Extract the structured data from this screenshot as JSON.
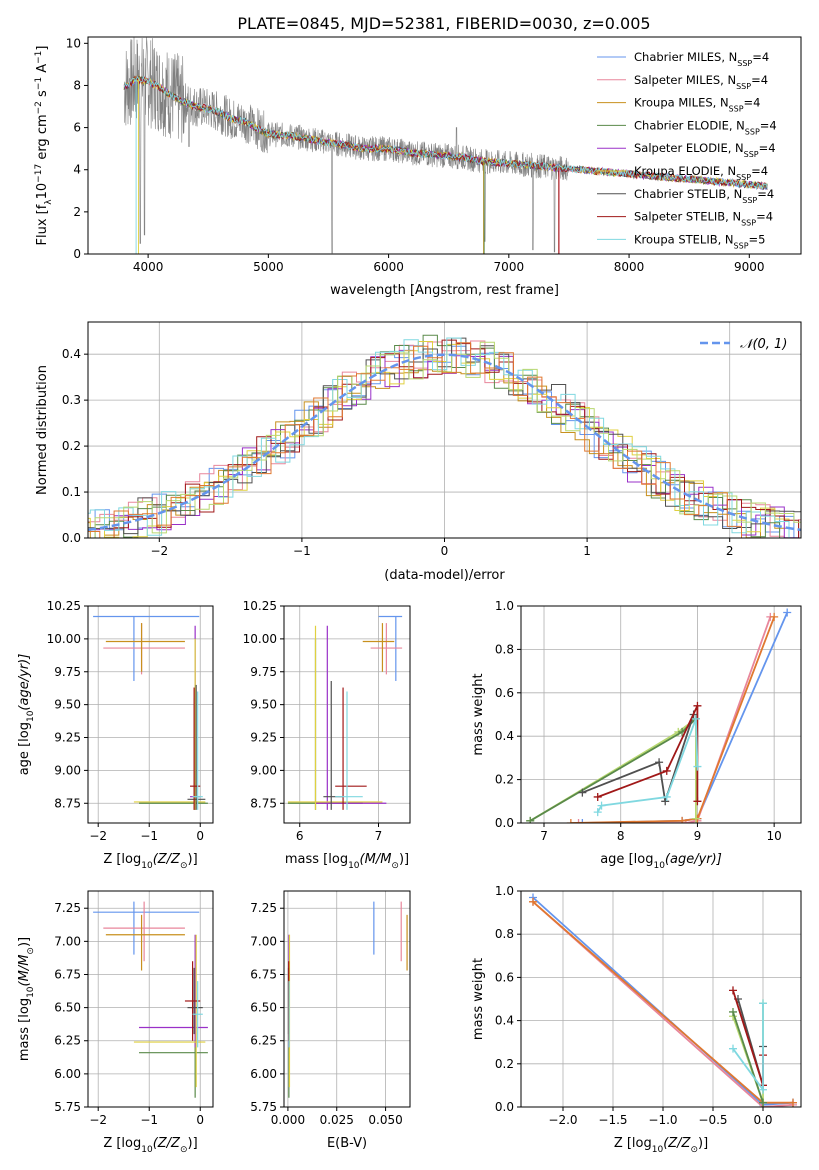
{
  "title": "PLATE=0845, MJD=52381, FIBERID=0030, z=0.005",
  "colors": {
    "chab_miles": "#6495ED",
    "salp_miles": "#E8869B",
    "krou_miles": "#C8901E",
    "chab_elodie": "#5A8A4A",
    "salp_elodie": "#9A30C8",
    "krou_elodie": "#E0D040",
    "chab_stelib": "#505050",
    "salp_stelib": "#A01818",
    "krou_stelib": "#80D8E0",
    "data": "#808080",
    "normal": "#6495ED",
    "orange": "#E07830",
    "lime": "#B8D870"
  },
  "models": [
    {
      "key": "chab_miles",
      "label": "Chabrier MILES, N",
      "nssp": "=4"
    },
    {
      "key": "salp_miles",
      "label": "Salpeter MILES, N",
      "nssp": "=4"
    },
    {
      "key": "krou_miles",
      "label": "Kroupa MILES, N",
      "nssp": "=4"
    },
    {
      "key": "chab_elodie",
      "label": "Chabrier ELODIE, N",
      "nssp": "=4"
    },
    {
      "key": "salp_elodie",
      "label": "Salpeter ELODIE, N",
      "nssp": "=4"
    },
    {
      "key": "krou_elodie",
      "label": "Kroupa ELODIE, N",
      "nssp": "=4"
    },
    {
      "key": "chab_stelib",
      "label": "Chabrier STELIB, N",
      "nssp": "=4"
    },
    {
      "key": "salp_stelib",
      "label": "Salpeter STELIB, N",
      "nssp": "=4"
    },
    {
      "key": "krou_stelib",
      "label": "Kroupa STELIB, N",
      "nssp": "=5"
    }
  ],
  "nssp_sub": "SSP",
  "chart_data": [
    {
      "id": "spectrum",
      "type": "line",
      "title": "PLATE=0845, MJD=52381, FIBERID=0030, z=0.005",
      "xlabel": "wavelength [Angstrom, rest frame]",
      "ylabel_parts": [
        "Flux [f",
        "λ",
        "10",
        "−17",
        " erg cm",
        "−2",
        " s",
        "−1",
        " A",
        "−1",
        "]"
      ],
      "xlim": [
        3500,
        9430
      ],
      "ylim": [
        0,
        10.3
      ],
      "xticks": [
        4000,
        5000,
        6000,
        7000,
        8000,
        9000
      ],
      "yticks": [
        0,
        2,
        4,
        6,
        8,
        10
      ],
      "continuum": [
        [
          3800,
          7.9
        ],
        [
          3900,
          8.3
        ],
        [
          4000,
          8.2
        ],
        [
          4100,
          7.9
        ],
        [
          4200,
          7.5
        ],
        [
          4300,
          7.2
        ],
        [
          4400,
          7.0
        ],
        [
          4500,
          6.9
        ],
        [
          4600,
          6.7
        ],
        [
          4700,
          6.4
        ],
        [
          4800,
          6.3
        ],
        [
          4900,
          6.0
        ],
        [
          5000,
          5.7
        ],
        [
          5200,
          5.6
        ],
        [
          5400,
          5.4
        ],
        [
          5600,
          5.2
        ],
        [
          5800,
          5.0
        ],
        [
          6000,
          5.0
        ],
        [
          6200,
          4.8
        ],
        [
          6400,
          4.7
        ],
        [
          6600,
          4.6
        ],
        [
          6800,
          4.4
        ],
        [
          7000,
          4.3
        ],
        [
          7200,
          4.2
        ],
        [
          7400,
          4.1
        ],
        [
          7600,
          4.0
        ],
        [
          7800,
          3.9
        ],
        [
          8000,
          3.8
        ],
        [
          8200,
          3.7
        ],
        [
          8400,
          3.6
        ],
        [
          8600,
          3.5
        ],
        [
          8800,
          3.4
        ],
        [
          9000,
          3.3
        ],
        [
          9150,
          3.2
        ]
      ],
      "data_range": [
        3800,
        9150
      ],
      "dips": [
        [
          3935,
          0.5
        ],
        [
          3970,
          0.9
        ],
        [
          4340,
          5.1
        ],
        [
          4860,
          5.6
        ],
        [
          5530,
          0.05
        ],
        [
          6565,
          6.0
        ],
        [
          6800,
          0.6
        ],
        [
          7200,
          0.2
        ],
        [
          7380,
          0.1
        ]
      ]
    },
    {
      "id": "residuals",
      "type": "histogram",
      "xlabel": "(data-model)/error",
      "ylabel": "Normed distribution",
      "xlim": [
        -2.5,
        2.5
      ],
      "ylim": [
        0,
        0.47
      ],
      "xticks": [
        -2,
        -1,
        0,
        1,
        2
      ],
      "yticks": [
        0.0,
        0.1,
        0.2,
        0.3,
        0.4
      ],
      "legend": "𝒩(0, 1)",
      "bin_width": 0.1
    },
    {
      "id": "age_vs_Z",
      "type": "scatter",
      "xlabel_parts": [
        "Z [log",
        "10",
        "(Z/Z",
        "⊙",
        ")]"
      ],
      "ylabel_parts": [
        "age  [log",
        "10",
        "(age/yr)]"
      ],
      "xlim": [
        -2.2,
        0.25
      ],
      "ylim": [
        8.6,
        10.25
      ],
      "xticks": [
        -2,
        -1,
        0
      ],
      "yticks": [
        8.75,
        9.0,
        9.25,
        9.5,
        9.75,
        10.0,
        10.25
      ],
      "points": [
        {
          "c": "chab_miles",
          "x": -1.3,
          "y": 10.17,
          "xl": -2.1,
          "xh": -0.02,
          "yl": 9.68,
          "yh": 10.17
        },
        {
          "c": "salp_miles",
          "x": -1.15,
          "y": 9.93,
          "xl": -1.9,
          "xh": -0.3,
          "yl": 9.73,
          "yh": 10.12
        },
        {
          "c": "krou_miles",
          "x": -1.15,
          "y": 9.98,
          "xl": -1.85,
          "xh": -0.3,
          "yl": 9.75,
          "yh": 10.12
        },
        {
          "c": "chab_elodie",
          "x": -0.12,
          "y": 8.75,
          "xl": -1.2,
          "xh": 0.15,
          "yl": 8.7,
          "yh": 9.55
        },
        {
          "c": "salp_elodie",
          "x": -0.1,
          "y": 8.8,
          "xl": -0.2,
          "xh": 0.0,
          "yl": 8.7,
          "yh": 10.1
        },
        {
          "c": "krou_elodie",
          "x": -0.1,
          "y": 8.76,
          "xl": -1.3,
          "xh": 0.1,
          "yl": 8.7,
          "yh": 10.0
        },
        {
          "c": "chab_stelib",
          "x": -0.08,
          "y": 8.78,
          "xl": -0.25,
          "xh": 0.1,
          "yl": 8.7,
          "yh": 9.65
        },
        {
          "c": "salp_stelib",
          "x": -0.12,
          "y": 8.88,
          "xl": -0.2,
          "xh": 0.0,
          "yl": 8.7,
          "yh": 9.63
        },
        {
          "c": "krou_stelib",
          "x": -0.05,
          "y": 8.8,
          "xl": -0.15,
          "xh": 0.05,
          "yl": 8.7,
          "yh": 9.6
        }
      ]
    },
    {
      "id": "age_vs_mass",
      "type": "scatter",
      "xlabel_parts": [
        "mass [log",
        "10",
        "(M/M",
        "⊙",
        ")]"
      ],
      "xlim": [
        5.8,
        7.4
      ],
      "ylim": [
        8.6,
        10.25
      ],
      "xticks": [
        6,
        7
      ],
      "yticks": [
        8.75,
        9.0,
        9.25,
        9.5,
        9.75,
        10.0,
        10.25
      ],
      "points": [
        {
          "c": "chab_miles",
          "x": 7.22,
          "y": 10.17,
          "xl": 7.0,
          "xh": 7.3,
          "yl": 9.68,
          "yh": 10.17
        },
        {
          "c": "salp_miles",
          "x": 7.1,
          "y": 9.93,
          "xl": 6.9,
          "xh": 7.3,
          "yl": 9.73,
          "yh": 10.12
        },
        {
          "c": "krou_miles",
          "x": 7.05,
          "y": 9.98,
          "xl": 6.8,
          "xh": 7.2,
          "yl": 9.75,
          "yh": 10.12
        },
        {
          "c": "chab_elodie",
          "x": 6.2,
          "y": 8.75,
          "xl": 5.85,
          "xh": 6.8,
          "yl": 8.7,
          "yh": 10.0
        },
        {
          "c": "salp_elodie",
          "x": 6.35,
          "y": 8.75,
          "xl": 6.2,
          "xh": 7.1,
          "yl": 8.7,
          "yh": 10.1
        },
        {
          "c": "krou_elodie",
          "x": 6.2,
          "y": 8.76,
          "xl": 5.85,
          "xh": 7.05,
          "yl": 8.7,
          "yh": 10.1
        },
        {
          "c": "chab_stelib",
          "x": 6.4,
          "y": 8.8,
          "xl": 6.3,
          "xh": 6.55,
          "yl": 8.7,
          "yh": 9.68
        },
        {
          "c": "salp_stelib",
          "x": 6.55,
          "y": 8.88,
          "xl": 6.45,
          "xh": 6.85,
          "yl": 8.7,
          "yh": 9.63
        },
        {
          "c": "krou_stelib",
          "x": 6.6,
          "y": 8.8,
          "xl": 6.45,
          "xh": 6.8,
          "yl": 8.7,
          "yh": 9.6
        }
      ]
    },
    {
      "id": "weight_vs_age",
      "type": "line",
      "xlabel_parts": [
        "age  [log",
        "10",
        "(age/yr)]"
      ],
      "ylabel": "mass weight",
      "xlim": [
        6.7,
        10.35
      ],
      "ylim": [
        0,
        1.0
      ],
      "xticks": [
        7,
        8,
        9,
        10
      ],
      "yticks": [
        0.0,
        0.2,
        0.4,
        0.6,
        0.8,
        1.0
      ],
      "series": [
        {
          "c": "chab_miles",
          "x": [
            7.5,
            8.8,
            9.0,
            10.17
          ],
          "y": [
            0.0,
            0.01,
            0.02,
            0.97
          ]
        },
        {
          "c": "salp_miles",
          "x": [
            7.45,
            8.85,
            9.0,
            9.95
          ],
          "y": [
            0.0,
            0.0,
            0.01,
            0.95
          ]
        },
        {
          "c": "orange",
          "x": [
            7.35,
            8.8,
            9.0,
            10.0
          ],
          "y": [
            0.0,
            0.01,
            0.02,
            0.95
          ]
        },
        {
          "c": "lime",
          "x": [
            6.82,
            8.75,
            8.98,
            8.98
          ],
          "y": [
            0.01,
            0.42,
            0.48,
            0.02
          ]
        },
        {
          "c": "chab_elodie",
          "x": [
            6.82,
            8.8,
            8.98
          ],
          "y": [
            0.01,
            0.42,
            0.48
          ]
        },
        {
          "c": "chab_stelib",
          "x": [
            7.5,
            8.5,
            8.58,
            8.95
          ],
          "y": [
            0.14,
            0.28,
            0.1,
            0.5
          ]
        },
        {
          "c": "salp_stelib",
          "x": [
            7.7,
            8.6,
            9.0,
            9.0
          ],
          "y": [
            0.12,
            0.24,
            0.54,
            0.1
          ]
        },
        {
          "c": "krou_stelib",
          "x": [
            7.7,
            7.75,
            8.6,
            8.98,
            9.0
          ],
          "y": [
            0.05,
            0.08,
            0.12,
            0.48,
            0.26
          ]
        }
      ]
    },
    {
      "id": "mass_vs_Z",
      "type": "scatter",
      "xlabel_parts": [
        "Z [log",
        "10",
        "(Z/Z",
        "⊙",
        ")]"
      ],
      "ylabel_parts": [
        "mass [log",
        "10",
        "(M/M",
        "⊙",
        ")]"
      ],
      "xlim": [
        -2.2,
        0.25
      ],
      "ylim": [
        5.75,
        7.38
      ],
      "xticks": [
        -2,
        -1,
        0
      ],
      "yticks": [
        5.75,
        6.0,
        6.25,
        6.5,
        6.75,
        7.0,
        7.25
      ],
      "points": [
        {
          "c": "chab_miles",
          "x": -1.3,
          "y": 7.22,
          "xl": -2.1,
          "xh": -0.02,
          "yl": 6.9,
          "yh": 7.3
        },
        {
          "c": "salp_miles",
          "x": -1.1,
          "y": 7.1,
          "xl": -1.9,
          "xh": -0.3,
          "yl": 6.85,
          "yh": 7.3
        },
        {
          "c": "krou_miles",
          "x": -1.15,
          "y": 7.05,
          "xl": -1.85,
          "xh": -0.3,
          "yl": 6.78,
          "yh": 7.2
        },
        {
          "c": "chab_elodie",
          "x": -0.1,
          "y": 6.16,
          "xl": -1.2,
          "xh": 0.15,
          "yl": 5.82,
          "yh": 6.5
        },
        {
          "c": "salp_elodie",
          "x": -0.1,
          "y": 6.35,
          "xl": -1.2,
          "xh": 0.15,
          "yl": 6.2,
          "yh": 7.05
        },
        {
          "c": "krou_elodie",
          "x": -0.08,
          "y": 6.24,
          "xl": -1.3,
          "xh": 0.1,
          "yl": 5.9,
          "yh": 7.05
        },
        {
          "c": "chab_stelib",
          "x": -0.12,
          "y": 6.5,
          "xl": -0.25,
          "xh": 0.05,
          "yl": 6.3,
          "yh": 6.8
        },
        {
          "c": "salp_stelib",
          "x": -0.15,
          "y": 6.55,
          "xl": -0.3,
          "xh": 0.0,
          "yl": 6.25,
          "yh": 6.85
        },
        {
          "c": "krou_stelib",
          "x": -0.05,
          "y": 6.45,
          "xl": -0.15,
          "xh": 0.05,
          "yl": 6.2,
          "yh": 6.7
        }
      ]
    },
    {
      "id": "mass_vs_ebv",
      "type": "scatter",
      "xlabel": "E(B-V)",
      "xlim": [
        -0.002,
        0.0625
      ],
      "ylim": [
        5.75,
        7.38
      ],
      "xticks": [
        0.0,
        0.025,
        0.05
      ],
      "yticks": [
        5.75,
        6.0,
        6.25,
        6.5,
        6.75,
        7.0,
        7.25
      ],
      "xtick_labels": [
        "0.000",
        "0.025",
        "0.050"
      ],
      "points": [
        {
          "c": "chab_miles",
          "x": 0.044,
          "y": 7.22,
          "yl": 6.9,
          "yh": 7.3
        },
        {
          "c": "salp_miles",
          "x": 0.058,
          "y": 7.1,
          "yl": 6.85,
          "yh": 7.3
        },
        {
          "c": "krou_miles",
          "x": 0.061,
          "y": 7.05,
          "yl": 6.78,
          "yh": 7.2
        },
        {
          "c": "chab_elodie",
          "x": 0.0005,
          "y": 6.16,
          "yl": 5.82,
          "yh": 6.5
        },
        {
          "c": "salp_elodie",
          "x": 0.0005,
          "y": 6.35,
          "yl": 6.2,
          "yh": 7.05
        },
        {
          "c": "krou_elodie",
          "x": 0.0008,
          "y": 6.24,
          "yl": 5.9,
          "yh": 7.05
        },
        {
          "c": "chab_stelib",
          "x": 0.0003,
          "y": 6.5,
          "yl": 6.3,
          "yh": 6.8
        },
        {
          "c": "salp_stelib",
          "x": 0.0004,
          "y": 6.55,
          "yl": 6.25,
          "yh": 6.85
        },
        {
          "c": "krou_stelib",
          "x": 0.0006,
          "y": 6.45,
          "yl": 6.2,
          "yh": 6.7
        }
      ]
    },
    {
      "id": "weight_vs_Z",
      "type": "line",
      "xlabel_parts": [
        "Z [log",
        "10",
        "(Z/Z",
        "⊙",
        ")]"
      ],
      "ylabel": "mass weight",
      "xlim": [
        -2.42,
        0.38
      ],
      "ylim": [
        0,
        1.0
      ],
      "xticks": [
        -2.0,
        -1.5,
        -1.0,
        -0.5,
        0.0
      ],
      "xtick_labels": [
        "−2.0",
        "−1.5",
        "−1.0",
        "−0.5",
        "0.0"
      ],
      "yticks": [
        0.0,
        0.2,
        0.4,
        0.6,
        0.8,
        1.0
      ],
      "series": [
        {
          "c": "chab_miles",
          "x": [
            -2.3,
            0.0,
            0.3
          ],
          "y": [
            0.97,
            0.01,
            0.02
          ]
        },
        {
          "c": "salp_miles",
          "x": [
            -2.3,
            0.0,
            0.3
          ],
          "y": [
            0.95,
            0.0,
            0.01
          ]
        },
        {
          "c": "orange",
          "x": [
            -2.3,
            0.0,
            0.3
          ],
          "y": [
            0.95,
            0.02,
            0.02
          ]
        },
        {
          "c": "lime",
          "x": [
            -0.3,
            0.0,
            0.0
          ],
          "y": [
            0.42,
            0.02,
            0.48
          ]
        },
        {
          "c": "chab_elodie",
          "x": [
            -0.3,
            0.0
          ],
          "y": [
            0.44,
            0.02
          ]
        },
        {
          "c": "chab_stelib",
          "x": [
            -0.25,
            0.0,
            0.0
          ],
          "y": [
            0.5,
            0.1,
            0.28
          ]
        },
        {
          "c": "salp_stelib",
          "x": [
            -0.3,
            0.0,
            0.0
          ],
          "y": [
            0.54,
            0.1,
            0.24
          ]
        },
        {
          "c": "krou_stelib",
          "x": [
            -0.3,
            0.0,
            0.0
          ],
          "y": [
            0.27,
            0.08,
            0.48
          ]
        }
      ]
    }
  ]
}
